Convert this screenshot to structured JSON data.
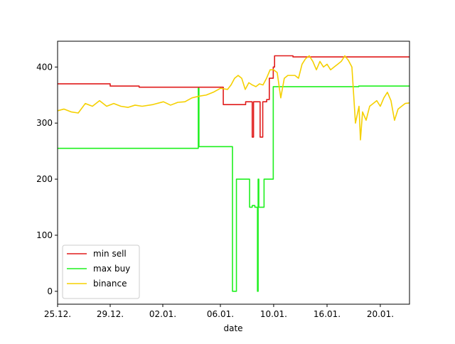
{
  "chart_data": {
    "type": "line",
    "xlabel": "date",
    "xlim": [
      0,
      26.76
    ],
    "xticks": [
      {
        "value": 0,
        "label": "25.12."
      },
      {
        "value": 4,
        "label": "29.12."
      },
      {
        "value": 8,
        "label": "02.01."
      },
      {
        "value": 12.38,
        "label": "06.01."
      },
      {
        "value": 16.43,
        "label": "10.01."
      },
      {
        "value": 20.49,
        "label": "16.01."
      },
      {
        "value": 24.54,
        "label": "20.01."
      }
    ],
    "ylim": [
      -23,
      446
    ],
    "yticks": [
      0,
      100,
      200,
      300,
      400
    ],
    "legend": "lower left",
    "series": [
      {
        "name": "min sell",
        "color": "#e01b1b",
        "x": [
          0,
          4.0,
          4.0,
          6.2,
          6.2,
          12.6,
          12.6,
          14.3,
          14.3,
          14.8,
          14.8,
          14.9,
          14.9,
          15.4,
          15.4,
          15.6,
          15.6,
          15.9,
          15.9,
          16.1,
          16.1,
          16.4,
          16.4,
          16.5,
          16.5,
          17.9,
          17.9,
          26.76
        ],
        "values": [
          370,
          370,
          366,
          366,
          364,
          364,
          333,
          333,
          338,
          338,
          275,
          275,
          338,
          338,
          275,
          275,
          338,
          338,
          342,
          342,
          380,
          380,
          400,
          400,
          420,
          420,
          418,
          418
        ]
      },
      {
        "name": "max buy",
        "color": "#1ef01e",
        "x": [
          0,
          10.7,
          10.7,
          10.75,
          10.75,
          13.3,
          13.3,
          13.6,
          13.6,
          14.6,
          14.6,
          14.8,
          14.8,
          15.0,
          15.0,
          15.2,
          15.2,
          15.25,
          15.25,
          15.3,
          15.3,
          15.7,
          15.7,
          16.4,
          16.4,
          22.9,
          22.9,
          26.76
        ],
        "values": [
          255,
          255,
          362,
          362,
          258,
          258,
          0,
          0,
          200,
          200,
          150,
          150,
          153,
          153,
          150,
          150,
          0,
          0,
          200,
          200,
          150,
          150,
          200,
          200,
          365,
          365,
          366,
          366
        ]
      },
      {
        "name": "binance",
        "color": "#f5d000",
        "x": [
          0,
          0.49,
          1.03,
          1.57,
          2.11,
          2.65,
          3.19,
          3.73,
          4.27,
          4.81,
          5.35,
          5.89,
          6.43,
          7.24,
          8.05,
          8.59,
          9.14,
          9.68,
          10.22,
          10.76,
          11.3,
          11.84,
          12.38,
          12.92,
          13.19,
          13.46,
          13.73,
          14,
          14.27,
          14.54,
          14.81,
          15.08,
          15.35,
          15.62,
          15.89,
          16.16,
          16.43,
          16.7,
          16.97,
          17.24,
          17.51,
          17.78,
          18.05,
          18.32,
          18.59,
          18.86,
          19.14,
          19.41,
          19.68,
          19.95,
          20.22,
          20.49,
          20.76,
          21.03,
          21.3,
          21.57,
          21.84,
          22.11,
          22.38,
          22.65,
          22.92,
          23.03,
          23.19,
          23.46,
          23.73,
          24,
          24.27,
          24.54,
          24.81,
          25.08,
          25.35,
          25.62,
          25.89,
          26.16,
          26.43,
          26.76
        ],
        "values": [
          322,
          325,
          320,
          318,
          335,
          330,
          340,
          330,
          335,
          330,
          328,
          332,
          330,
          333,
          338,
          332,
          337,
          338,
          345,
          348,
          350,
          355,
          362,
          360,
          368,
          380,
          385,
          380,
          360,
          372,
          368,
          365,
          370,
          368,
          380,
          395,
          395,
          390,
          345,
          380,
          385,
          385,
          385,
          380,
          405,
          415,
          420,
          410,
          395,
          410,
          400,
          405,
          395,
          400,
          405,
          410,
          420,
          412,
          400,
          300,
          330,
          270,
          320,
          305,
          330,
          335,
          340,
          330,
          345,
          355,
          340,
          305,
          325,
          330,
          335,
          336
        ]
      }
    ]
  }
}
